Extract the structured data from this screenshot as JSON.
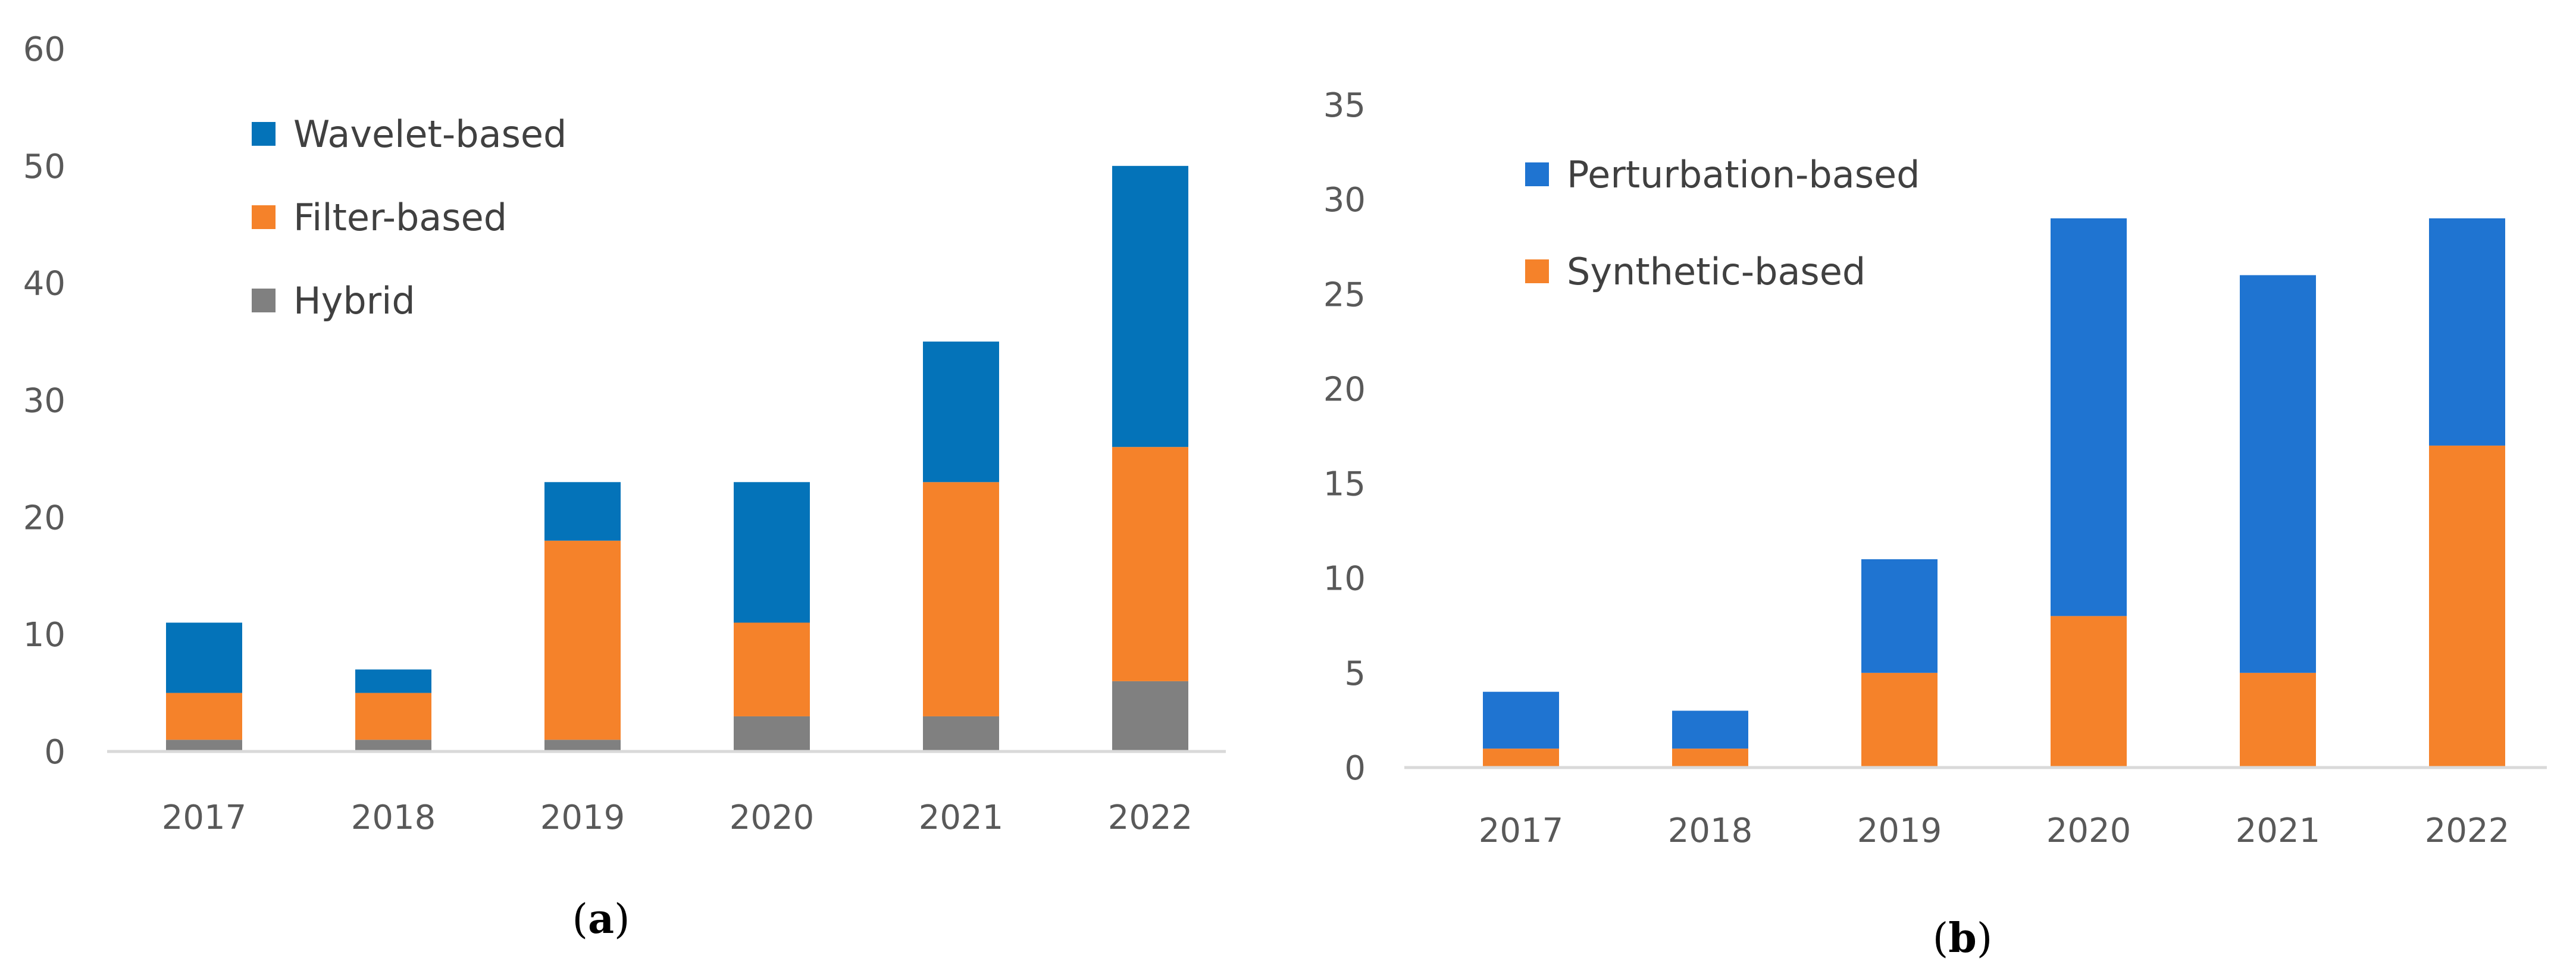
{
  "chart_data": [
    {
      "type": "bar",
      "stacked": true,
      "panel_label": {
        "open": "(",
        "letter": "a",
        "close": ")"
      },
      "categories": [
        "2017",
        "2018",
        "2019",
        "2020",
        "2021",
        "2022"
      ],
      "ylim": [
        0,
        60
      ],
      "yticks": [
        "0",
        "10",
        "20",
        "30",
        "40",
        "50",
        "60"
      ],
      "grid": false,
      "legend_position": "top-left",
      "series": [
        {
          "name": "Hybrid",
          "color": "#808080",
          "values": [
            1,
            1,
            1,
            3,
            3,
            6
          ]
        },
        {
          "name": "Filter-based",
          "color": "#F5822A",
          "values": [
            4,
            4,
            17,
            8,
            20,
            20
          ]
        },
        {
          "name": "Wavelet-based",
          "color": "#0473B9",
          "values": [
            6,
            2,
            5,
            12,
            12,
            24
          ]
        }
      ],
      "legend_order": [
        "Wavelet-based",
        "Filter-based",
        "Hybrid"
      ]
    },
    {
      "type": "bar",
      "stacked": true,
      "panel_label": {
        "open": "(",
        "letter": "b",
        "close": ")"
      },
      "categories": [
        "2017",
        "2018",
        "2019",
        "2020",
        "2021",
        "2022"
      ],
      "ylim": [
        0,
        35
      ],
      "yticks": [
        "0",
        "5",
        "10",
        "15",
        "20",
        "25",
        "30",
        "35"
      ],
      "grid": false,
      "legend_position": "top-left",
      "series": [
        {
          "name": "Synthetic-based",
          "color": "#F5822A",
          "values": [
            1,
            1,
            5,
            8,
            5,
            17
          ]
        },
        {
          "name": "Perturbation-based",
          "color": "#1F74D1",
          "values": [
            3,
            2,
            6,
            21,
            21,
            12
          ]
        }
      ],
      "legend_order": [
        "Perturbation-based",
        "Synthetic-based"
      ]
    }
  ]
}
